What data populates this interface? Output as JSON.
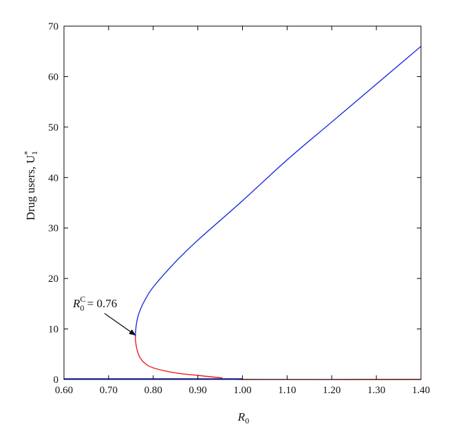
{
  "chart_data": {
    "type": "line",
    "title": "",
    "xlabel": {
      "main": "R",
      "sub": "0"
    },
    "ylabel": {
      "main": "Drug users, U",
      "sub": "1",
      "sup": "*"
    },
    "xlim": [
      0.6,
      1.4
    ],
    "ylim": [
      0,
      70
    ],
    "x_ticks": [
      "0.60",
      "0.70",
      "0.80",
      "0.90",
      "1.00",
      "1.10",
      "1.20",
      "1.30",
      "1.40"
    ],
    "y_ticks": [
      "0",
      "10",
      "20",
      "30",
      "40",
      "50",
      "60",
      "70"
    ],
    "grid": false,
    "colors": {
      "upper": "#1f2fe0",
      "lower": "#ee1c1c",
      "trivial": "#1f2fe0",
      "axis": "#000000"
    },
    "series": [
      {
        "color": "#1f2fe0",
        "x": [
          0.76,
          0.7605,
          0.762,
          0.765,
          0.77,
          0.78,
          0.8,
          0.85,
          0.9,
          1.0,
          1.1,
          1.2,
          1.3,
          1.4
        ],
        "y": [
          8.5,
          9.5,
          10.8,
          12.2,
          13.6,
          15.5,
          18.3,
          23.3,
          27.6,
          35.4,
          43.5,
          51.0,
          58.5,
          66.0
        ]
      },
      {
        "color": "#ee1c1c",
        "x": [
          0.76,
          0.7605,
          0.762,
          0.765,
          0.77,
          0.78,
          0.8,
          0.85,
          0.9,
          0.95,
          1.0,
          1.4
        ],
        "y": [
          8.5,
          7.6,
          6.6,
          5.5,
          4.4,
          3.3,
          2.3,
          1.3,
          0.8,
          0.35,
          0.0,
          0.0
        ]
      },
      {
        "color": "#1f2fe0",
        "x": [
          0.6,
          1.0
        ],
        "y": [
          0.1,
          0.1
        ]
      }
    ],
    "annotation": {
      "text_main": "R",
      "text_sub": "0",
      "text_sup": "C",
      "text_rest": " = 0.76",
      "target": {
        "x": 0.76,
        "y": 8.5
      }
    }
  }
}
